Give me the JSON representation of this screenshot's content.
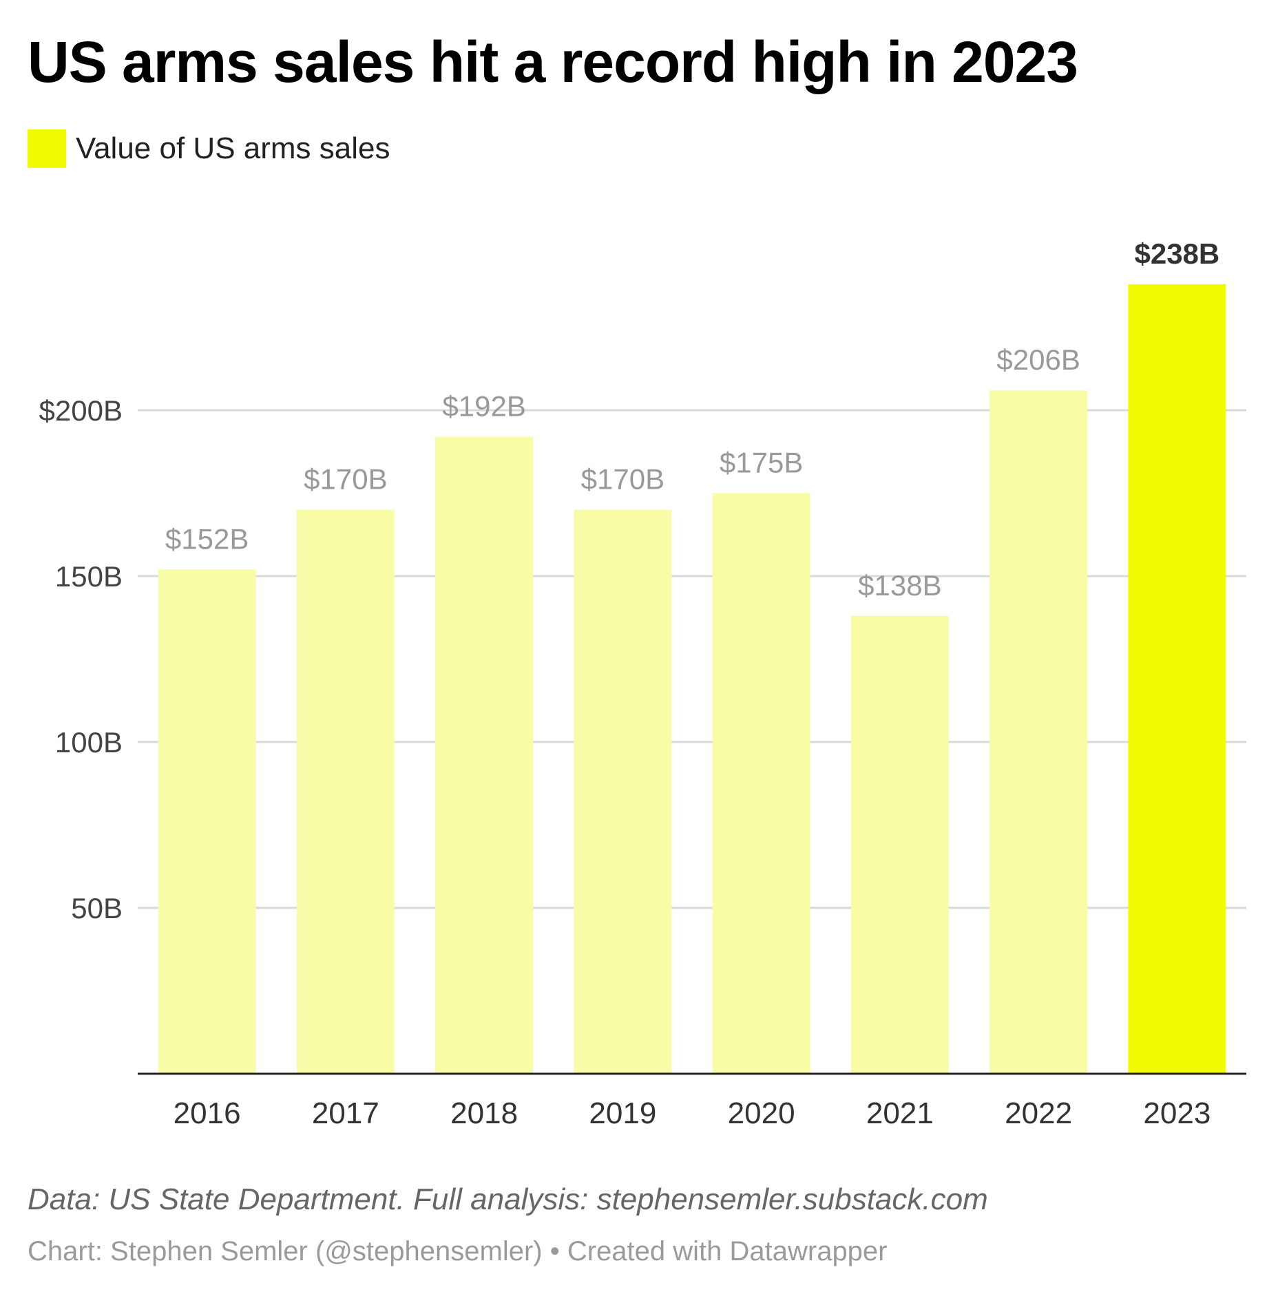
{
  "title": "US arms sales hit a record high in 2023",
  "legend": {
    "label": "Value of US arms sales",
    "color": "#f2fc00"
  },
  "chart_data": {
    "type": "bar",
    "title": "US arms sales hit a record high in 2023",
    "categories": [
      "2016",
      "2017",
      "2018",
      "2019",
      "2020",
      "2021",
      "2022",
      "2023"
    ],
    "values": [
      152,
      170,
      192,
      170,
      175,
      138,
      206,
      238
    ],
    "value_labels": [
      "$152B",
      "$170B",
      "$192B",
      "$170B",
      "$175B",
      "$138B",
      "$206B",
      "$238B"
    ],
    "series_name": "Value of US arms sales",
    "highlight_index": 7,
    "y_ticks": [
      50,
      100,
      150,
      200
    ],
    "y_tick_labels": [
      "50B",
      "100B",
      "150B",
      "$200B"
    ],
    "ylim": [
      0,
      250
    ],
    "xlabel": "",
    "ylabel": "",
    "grid": true,
    "colors": {
      "bar": "#f9fca6",
      "highlight": "#f2fc00",
      "grid": "#d9d9d9",
      "axis": "#222222",
      "label": "#999999",
      "highlight_label": "#333333",
      "tick_label": "#444444"
    }
  },
  "notes": "Data: US State Department. Full analysis: stephensemler.substack.com",
  "credit": "Chart: Stephen Semler (@stephensemler) • Created with Datawrapper"
}
